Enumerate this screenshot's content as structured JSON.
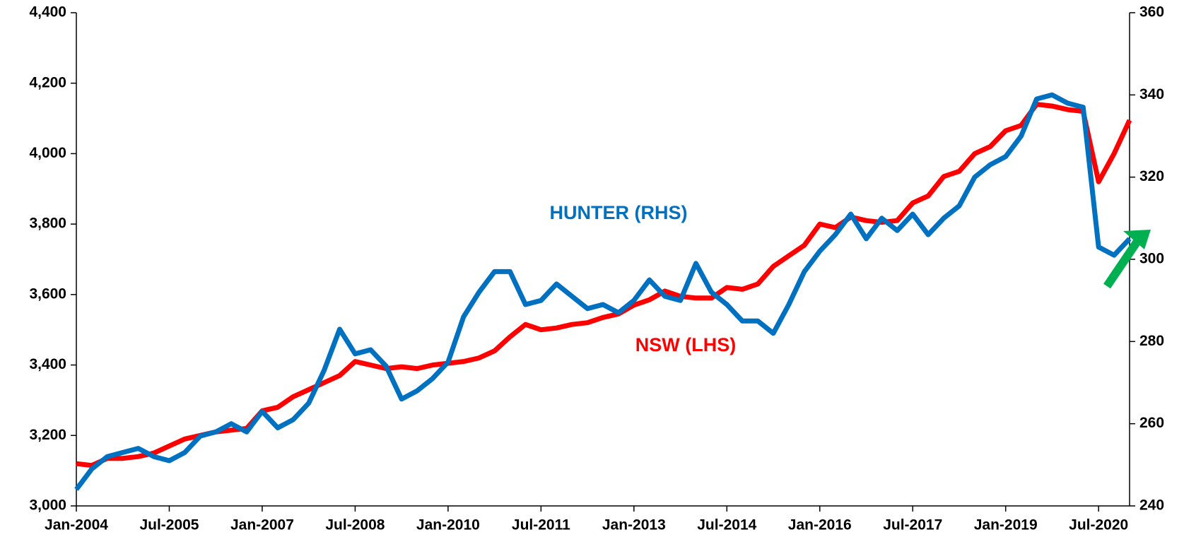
{
  "chart_data": {
    "type": "line",
    "categories": [
      "Jan-2004",
      null,
      null,
      null,
      null,
      null,
      "Jul-2005",
      null,
      null,
      null,
      null,
      null,
      "Jan-2007",
      null,
      null,
      null,
      null,
      null,
      "Jul-2008",
      null,
      null,
      null,
      null,
      null,
      "Jan-2010",
      null,
      null,
      null,
      null,
      null,
      "Jul-2011",
      null,
      null,
      null,
      null,
      null,
      "Jan-2013",
      null,
      null,
      null,
      null,
      null,
      "Jul-2014",
      null,
      null,
      null,
      null,
      null,
      "Jan-2016",
      null,
      null,
      null,
      null,
      null,
      "Jul-2017",
      null,
      null,
      null,
      null,
      null,
      "Jan-2019",
      null,
      null,
      null,
      null,
      null,
      "Jul-2020",
      null,
      null
    ],
    "series": [
      {
        "name": "NSW (LHS)",
        "color": "#ff0000",
        "axis": "y",
        "values": [
          3120,
          3115,
          3135,
          3135,
          3140,
          3150,
          3170,
          3190,
          3200,
          3210,
          3215,
          3220,
          3270,
          3280,
          3310,
          3330,
          3350,
          3370,
          3410,
          3400,
          3390,
          3395,
          3390,
          3400,
          3405,
          3410,
          3420,
          3440,
          3480,
          3515,
          3500,
          3505,
          3515,
          3520,
          3535,
          3545,
          3570,
          3585,
          3610,
          3595,
          3590,
          3590,
          3620,
          3615,
          3630,
          3680,
          3710,
          3740,
          3800,
          3790,
          3820,
          3810,
          3805,
          3810,
          3860,
          3880,
          3935,
          3950,
          4000,
          4020,
          4065,
          4080,
          4140,
          4135,
          4125,
          4120,
          3920,
          4000,
          4095
        ]
      },
      {
        "name": "HUNTER (RHS)",
        "color": "#0070c0",
        "axis": "y2",
        "values": [
          244,
          249,
          252,
          253,
          254,
          252,
          251,
          253,
          257,
          258,
          260,
          258,
          263,
          259,
          261,
          265,
          273,
          283,
          277,
          278,
          274,
          266,
          268,
          271,
          275,
          286,
          292,
          297,
          297,
          289,
          290,
          294,
          291,
          288,
          289,
          287,
          290,
          295,
          291,
          290,
          299,
          292,
          289,
          285,
          285,
          282,
          289,
          297,
          302,
          306,
          311,
          305,
          310,
          307,
          311,
          306,
          310,
          313,
          320,
          323,
          325,
          330,
          339,
          340,
          338,
          337,
          303,
          301,
          305
        ]
      }
    ],
    "ylim": [
      3000,
      4400
    ],
    "yticks": [
      {
        "value": 3000,
        "label": "3,000"
      },
      {
        "value": 3200,
        "label": "3,200"
      },
      {
        "value": 3400,
        "label": "3,400"
      },
      {
        "value": 3600,
        "label": "3,600"
      },
      {
        "value": 3800,
        "label": "3,800"
      },
      {
        "value": 4000,
        "label": "4,000"
      },
      {
        "value": 4200,
        "label": "4,200"
      },
      {
        "value": 4400,
        "label": "4,400"
      }
    ],
    "y2lim": [
      240,
      360
    ],
    "y2ticks": [
      240,
      260,
      280,
      300,
      320,
      340,
      360
    ],
    "grid": false
  }
}
